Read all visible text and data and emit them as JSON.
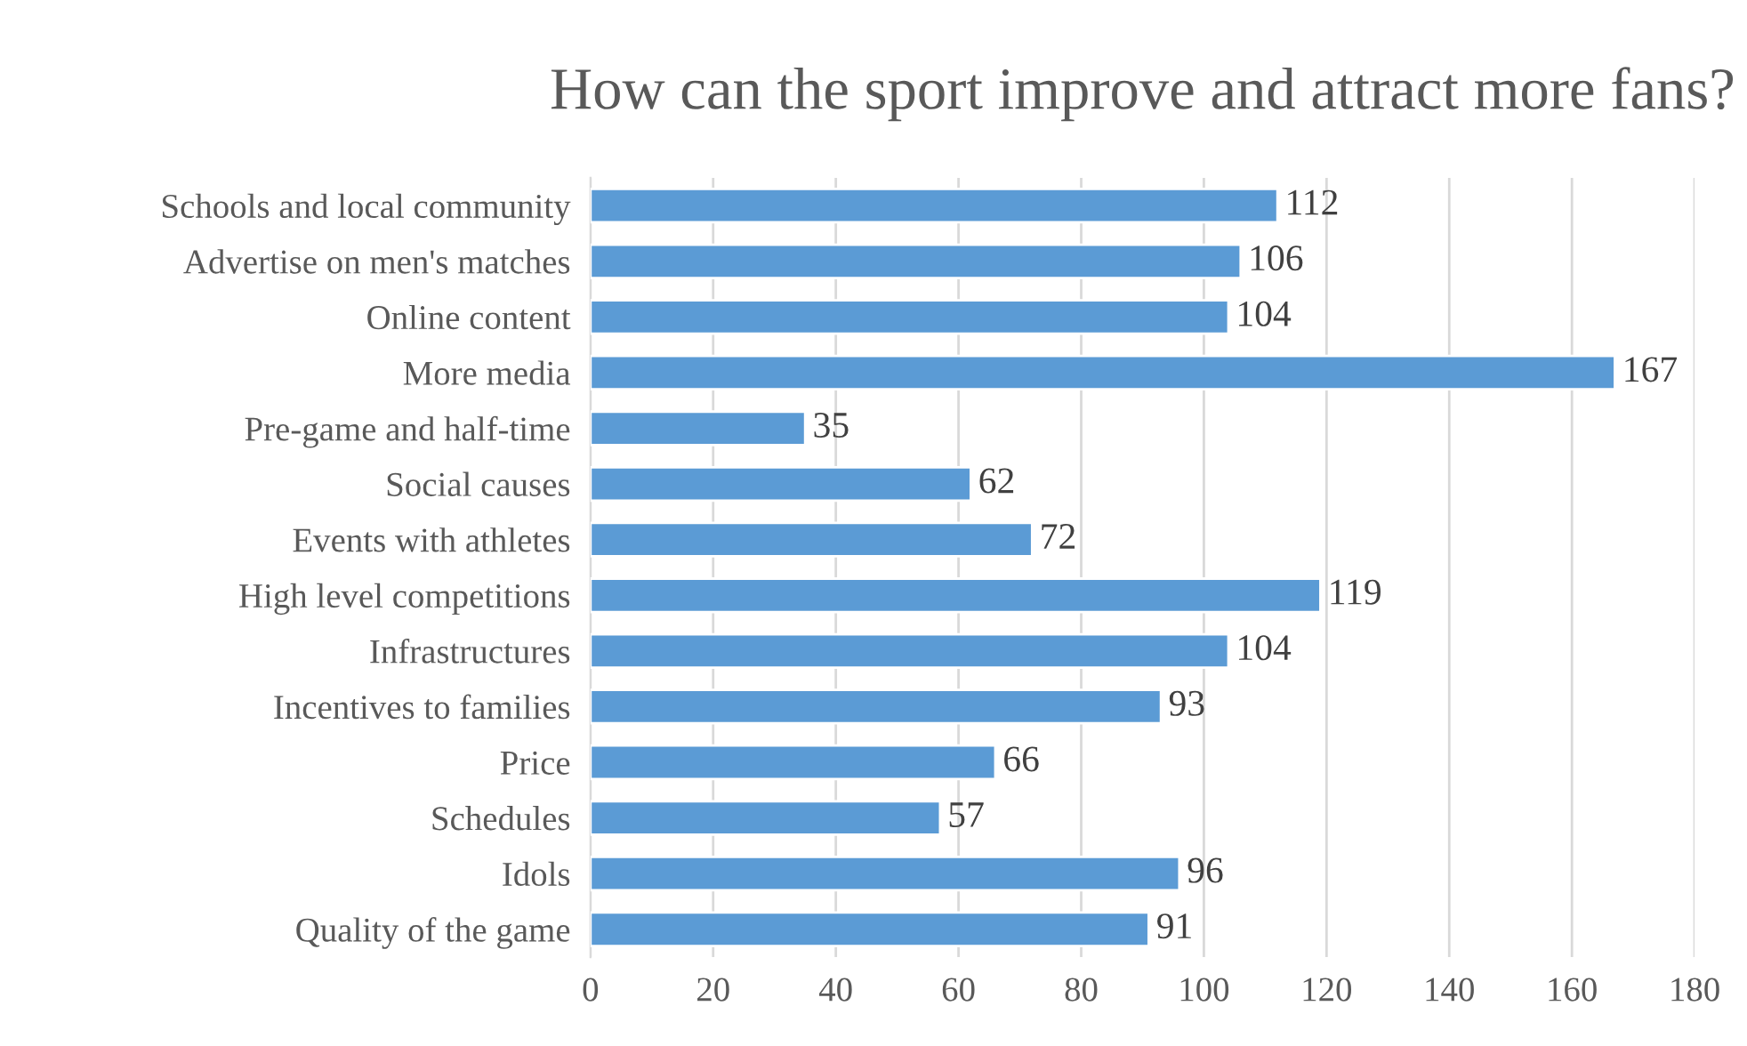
{
  "chart_data": {
    "type": "bar",
    "orientation": "horizontal",
    "title": "How can the sport improve and attract more fans?",
    "categories": [
      "Schools and local community",
      "Advertise on men's matches",
      "Online content",
      "More media",
      "Pre-game and half-time",
      "Social causes",
      "Events with athletes",
      "High level competitions",
      "Infrastructures",
      "Incentives to families",
      "Price",
      "Schedules",
      "Idols",
      "Quality of the game"
    ],
    "values": [
      112,
      106,
      104,
      167,
      35,
      62,
      72,
      119,
      104,
      93,
      66,
      57,
      96,
      91
    ],
    "color": "#5b9bd5",
    "xlim": [
      0,
      180
    ],
    "xticks": [
      0,
      20,
      40,
      60,
      80,
      100,
      120,
      140,
      160,
      180
    ],
    "grid": "x",
    "data_labels": true,
    "legend": false
  }
}
